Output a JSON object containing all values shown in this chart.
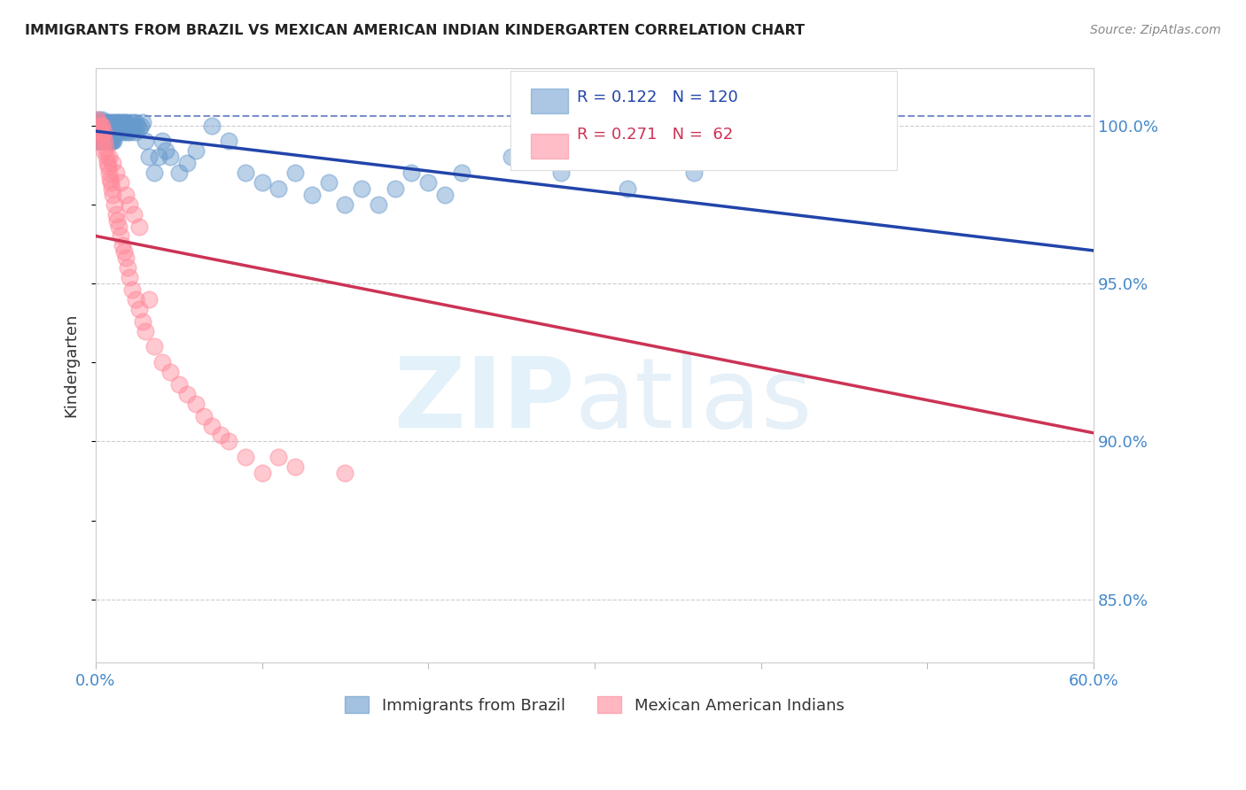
{
  "title": "IMMIGRANTS FROM BRAZIL VS MEXICAN AMERICAN INDIAN KINDERGARTEN CORRELATION CHART",
  "source": "Source: ZipAtlas.com",
  "ylabel": "Kindergarten",
  "xlim": [
    0.0,
    60.0
  ],
  "ylim": [
    83.0,
    101.8
  ],
  "series1_color": "#6699CC",
  "series2_color": "#FF8899",
  "series1_line_color": "#2244AA",
  "series2_line_color": "#CC3355",
  "series1_label": "Immigrants from Brazil",
  "series2_label": "Mexican American Indians",
  "series1_R": 0.122,
  "series1_N": 120,
  "series2_R": 0.271,
  "series2_N": 62,
  "background_color": "#ffffff",
  "grid_color": "#cccccc",
  "title_color": "#222222",
  "axis_label_color": "#333333",
  "ytick_color": "#4488CC",
  "xtick_color": "#4488CC",
  "series1_x": [
    0.1,
    0.15,
    0.2,
    0.2,
    0.25,
    0.3,
    0.3,
    0.35,
    0.4,
    0.4,
    0.45,
    0.5,
    0.5,
    0.55,
    0.6,
    0.6,
    0.65,
    0.7,
    0.7,
    0.75,
    0.8,
    0.8,
    0.85,
    0.9,
    0.9,
    0.95,
    1.0,
    1.0,
    1.05,
    1.1,
    1.1,
    1.15,
    1.2,
    1.2,
    1.25,
    1.3,
    1.3,
    1.35,
    1.4,
    1.4,
    1.45,
    1.5,
    1.5,
    1.55,
    1.6,
    1.6,
    1.65,
    1.7,
    1.7,
    1.75,
    1.8,
    1.8,
    1.85,
    1.9,
    1.9,
    2.0,
    2.0,
    2.1,
    2.1,
    2.2,
    2.2,
    2.3,
    2.3,
    2.4,
    2.4,
    2.5,
    2.6,
    2.7,
    2.8,
    3.0,
    3.2,
    3.5,
    3.8,
    4.0,
    4.2,
    4.5,
    5.0,
    5.5,
    6.0,
    7.0,
    8.0,
    9.0,
    10.0,
    11.0,
    12.0,
    13.0,
    14.0,
    15.0,
    16.0,
    17.0,
    18.0,
    19.0,
    20.0,
    21.0,
    22.0,
    25.0,
    28.0,
    32.0,
    36.0,
    42.0,
    0.12,
    0.18,
    0.22,
    0.28,
    0.32,
    0.38,
    0.42,
    0.48,
    0.52,
    0.58,
    0.62,
    0.68,
    0.72,
    0.78,
    0.82,
    0.88,
    0.92,
    0.98,
    1.02,
    1.08
  ],
  "series1_y": [
    100.1,
    100.2,
    100.0,
    99.8,
    100.1,
    100.0,
    99.9,
    100.2,
    100.0,
    99.7,
    100.1,
    100.0,
    99.8,
    100.0,
    100.1,
    99.9,
    100.0,
    100.0,
    99.8,
    100.1,
    100.0,
    99.9,
    100.0,
    100.1,
    99.8,
    100.0,
    100.0,
    99.9,
    100.1,
    100.0,
    99.8,
    100.0,
    99.9,
    100.1,
    100.0,
    99.8,
    100.0,
    100.1,
    99.9,
    100.0,
    100.0,
    99.8,
    100.1,
    100.0,
    99.9,
    100.0,
    100.1,
    99.8,
    100.0,
    100.1,
    99.9,
    100.0,
    100.0,
    99.8,
    100.1,
    100.0,
    99.9,
    100.0,
    99.8,
    100.1,
    100.0,
    99.9,
    100.0,
    100.1,
    99.8,
    100.0,
    99.9,
    100.0,
    100.1,
    99.5,
    99.0,
    98.5,
    99.0,
    99.5,
    99.2,
    99.0,
    98.5,
    98.8,
    99.2,
    100.0,
    99.5,
    98.5,
    98.2,
    98.0,
    98.5,
    97.8,
    98.2,
    97.5,
    98.0,
    97.5,
    98.0,
    98.5,
    98.2,
    97.8,
    98.5,
    99.0,
    98.5,
    98.0,
    98.5,
    99.0,
    99.5,
    99.5,
    99.5,
    99.5,
    99.5,
    99.5,
    99.5,
    99.5,
    99.5,
    99.5,
    99.5,
    99.5,
    99.5,
    99.5,
    99.5,
    99.5,
    99.5,
    99.5,
    99.5,
    99.5
  ],
  "series2_x": [
    0.1,
    0.15,
    0.2,
    0.25,
    0.3,
    0.35,
    0.4,
    0.45,
    0.5,
    0.55,
    0.6,
    0.65,
    0.7,
    0.75,
    0.8,
    0.85,
    0.9,
    0.95,
    1.0,
    1.1,
    1.2,
    1.3,
    1.4,
    1.5,
    1.6,
    1.7,
    1.8,
    1.9,
    2.0,
    2.2,
    2.4,
    2.6,
    2.8,
    3.0,
    3.5,
    4.0,
    4.5,
    5.0,
    5.5,
    6.0,
    6.5,
    7.0,
    7.5,
    8.0,
    9.0,
    10.0,
    11.0,
    12.0,
    15.0,
    35.0,
    42.0,
    0.3,
    0.5,
    0.8,
    1.0,
    1.2,
    1.5,
    1.8,
    2.0,
    2.3,
    2.6,
    3.2
  ],
  "series2_y": [
    100.2,
    100.1,
    100.0,
    99.8,
    100.0,
    99.7,
    100.0,
    99.5,
    99.8,
    99.5,
    99.3,
    99.0,
    98.8,
    98.7,
    98.5,
    98.3,
    98.2,
    98.0,
    97.8,
    97.5,
    97.2,
    97.0,
    96.8,
    96.5,
    96.2,
    96.0,
    95.8,
    95.5,
    95.2,
    94.8,
    94.5,
    94.2,
    93.8,
    93.5,
    93.0,
    92.5,
    92.2,
    91.8,
    91.5,
    91.2,
    90.8,
    90.5,
    90.2,
    90.0,
    89.5,
    89.0,
    89.5,
    89.2,
    89.0,
    100.5,
    100.2,
    99.5,
    99.2,
    99.0,
    98.8,
    98.5,
    98.2,
    97.8,
    97.5,
    97.2,
    96.8,
    94.5
  ]
}
